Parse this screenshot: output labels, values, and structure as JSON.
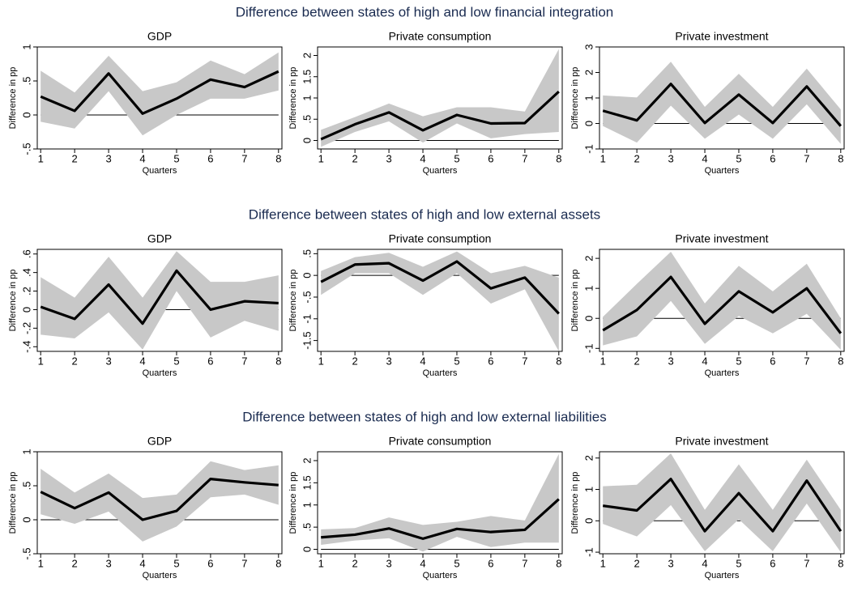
{
  "figure_titles": [
    "Difference between states of high and low financial integration",
    "Difference between states of high and low external assets",
    "Difference between states of high and low external liabilities"
  ],
  "chart_data": [
    {
      "type": "line",
      "title": "GDP",
      "xlabel": "Quarters",
      "ylabel": "Difference in pp",
      "x": [
        1,
        2,
        3,
        4,
        5,
        6,
        7,
        8
      ],
      "xlim": [
        0.9,
        8.1
      ],
      "xticks": [
        1,
        2,
        3,
        4,
        5,
        6,
        7,
        8
      ],
      "ylim": [
        -0.5,
        1
      ],
      "yticks": [
        {
          "value": -0.5,
          "label": "-.5"
        },
        0,
        {
          "value": 0.5,
          "label": ".5"
        },
        1
      ],
      "hline": 0,
      "color": "#000000",
      "band_color": "#c8c8c8",
      "values": [
        0.27,
        0.06,
        0.61,
        0.02,
        0.24,
        0.52,
        0.41,
        0.64
      ],
      "ci_lower": [
        -0.1,
        -0.2,
        0.35,
        -0.3,
        0,
        0.24,
        0.24,
        0.36
      ],
      "ci_upper": [
        0.65,
        0.33,
        0.87,
        0.35,
        0.48,
        0.8,
        0.6,
        0.92
      ]
    },
    {
      "type": "line",
      "title": "Private consumption",
      "xlabel": "Quarters",
      "ylabel": "Difference in pp",
      "x": [
        1,
        2,
        3,
        4,
        5,
        6,
        7,
        8
      ],
      "xlim": [
        0.9,
        8.1
      ],
      "xticks": [
        1,
        2,
        3,
        4,
        5,
        6,
        7,
        8
      ],
      "ylim": [
        -0.2,
        2.2
      ],
      "yticks": [
        0,
        {
          "value": 0.5,
          "label": ".5"
        },
        1,
        1.5,
        2
      ],
      "hline": 0,
      "color": "#000000",
      "band_color": "#c8c8c8",
      "values": [
        0.03,
        0.38,
        0.66,
        0.24,
        0.6,
        0.4,
        0.41,
        1.15
      ],
      "ci_lower": [
        -0.15,
        0.2,
        0.45,
        -0.05,
        0.4,
        0.05,
        0.15,
        0.2
      ],
      "ci_upper": [
        0.25,
        0.55,
        0.87,
        0.57,
        0.78,
        0.78,
        0.68,
        2.15
      ]
    },
    {
      "type": "line",
      "title": "Private investment",
      "xlabel": "Quarters",
      "ylabel": "Difference in pp",
      "x": [
        1,
        2,
        3,
        4,
        5,
        6,
        7,
        8
      ],
      "xlim": [
        0.9,
        8.1
      ],
      "xticks": [
        1,
        2,
        3,
        4,
        5,
        6,
        7,
        8
      ],
      "ylim": [
        -1,
        3
      ],
      "yticks": [
        -1,
        0,
        1,
        2,
        3
      ],
      "hline": 0,
      "color": "#000000",
      "band_color": "#c8c8c8",
      "values": [
        0.5,
        0.12,
        1.55,
        0.02,
        1.13,
        0.02,
        1.45,
        -0.1
      ],
      "ci_lower": [
        -0.1,
        -0.75,
        0.7,
        -0.6,
        0.35,
        -0.6,
        0.75,
        -0.8
      ],
      "ci_upper": [
        1.1,
        1.02,
        2.42,
        0.65,
        1.95,
        0.65,
        2.15,
        0.55
      ]
    },
    {
      "type": "line",
      "title": "GDP",
      "xlabel": "Quarters",
      "ylabel": "Difference in pp",
      "x": [
        1,
        2,
        3,
        4,
        5,
        6,
        7,
        8
      ],
      "xlim": [
        0.9,
        8.1
      ],
      "xticks": [
        1,
        2,
        3,
        4,
        5,
        6,
        7,
        8
      ],
      "ylim": [
        -0.45,
        0.65
      ],
      "yticks": [
        {
          "value": -0.4,
          "label": "-.4"
        },
        {
          "value": -0.2,
          "label": "-.2"
        },
        0,
        {
          "value": 0.2,
          "label": ".2"
        },
        {
          "value": 0.4,
          "label": ".4"
        },
        {
          "value": 0.6,
          "label": ".6"
        }
      ],
      "hline": 0,
      "color": "#000000",
      "band_color": "#c8c8c8",
      "values": [
        0.03,
        -0.1,
        0.27,
        -0.15,
        0.42,
        0,
        0.09,
        0.07
      ],
      "ci_lower": [
        -0.27,
        -0.31,
        -0.03,
        -0.43,
        0.2,
        -0.3,
        -0.12,
        -0.23
      ],
      "ci_upper": [
        0.35,
        0.13,
        0.57,
        0.13,
        0.63,
        0.3,
        0.3,
        0.37
      ]
    },
    {
      "type": "line",
      "title": "Private consumption",
      "xlabel": "Quarters",
      "ylabel": "Difference in pp",
      "x": [
        1,
        2,
        3,
        4,
        5,
        6,
        7,
        8
      ],
      "xlim": [
        0.9,
        8.1
      ],
      "xticks": [
        1,
        2,
        3,
        4,
        5,
        6,
        7,
        8
      ],
      "ylim": [
        -1.75,
        0.6
      ],
      "yticks": [
        -1.5,
        -1,
        {
          "value": -0.5,
          "label": "-.5"
        },
        0,
        {
          "value": 0.5,
          "label": ".5"
        }
      ],
      "hline": 0,
      "color": "#000000",
      "band_color": "#c8c8c8",
      "values": [
        -0.15,
        0.25,
        0.28,
        -0.12,
        0.32,
        -0.3,
        -0.05,
        -0.88
      ],
      "ci_lower": [
        -0.45,
        0.05,
        0.05,
        -0.45,
        0.05,
        -0.65,
        -0.32,
        -1.75
      ],
      "ci_upper": [
        0.1,
        0.42,
        0.52,
        0.2,
        0.55,
        0.05,
        0.22,
        -0.05
      ]
    },
    {
      "type": "line",
      "title": "Private investment",
      "xlabel": "Quarters",
      "ylabel": "Difference in pp",
      "x": [
        1,
        2,
        3,
        4,
        5,
        6,
        7,
        8
      ],
      "xlim": [
        0.9,
        8.1
      ],
      "xticks": [
        1,
        2,
        3,
        4,
        5,
        6,
        7,
        8
      ],
      "ylim": [
        -1.1,
        2.3
      ],
      "yticks": [
        -1,
        0,
        1,
        2
      ],
      "hline": 0,
      "color": "#000000",
      "band_color": "#c8c8c8",
      "values": [
        -0.4,
        0.28,
        1.38,
        -0.18,
        0.9,
        0.2,
        1,
        -0.5
      ],
      "ci_lower": [
        -0.9,
        -0.6,
        0.58,
        -0.85,
        0.08,
        -0.5,
        0.15,
        -1.05
      ],
      "ci_upper": [
        0.05,
        1.15,
        2.22,
        0.5,
        1.75,
        0.9,
        1.82,
        0
      ]
    },
    {
      "type": "line",
      "title": "GDP",
      "xlabel": "Quarters",
      "ylabel": "Difference in pp",
      "x": [
        1,
        2,
        3,
        4,
        5,
        6,
        7,
        8
      ],
      "xlim": [
        0.9,
        8.1
      ],
      "xticks": [
        1,
        2,
        3,
        4,
        5,
        6,
        7,
        8
      ],
      "ylim": [
        -0.5,
        1
      ],
      "yticks": [
        {
          "value": -0.5,
          "label": "-.5"
        },
        0,
        {
          "value": 0.5,
          "label": ".5"
        },
        1
      ],
      "hline": 0,
      "color": "#000000",
      "band_color": "#c8c8c8",
      "values": [
        0.41,
        0.17,
        0.4,
        0,
        0.13,
        0.6,
        0.55,
        0.51
      ],
      "ci_lower": [
        0.08,
        -0.06,
        0.12,
        -0.32,
        -0.1,
        0.33,
        0.37,
        0.22
      ],
      "ci_upper": [
        0.75,
        0.4,
        0.68,
        0.32,
        0.37,
        0.86,
        0.73,
        0.8
      ]
    },
    {
      "type": "line",
      "title": "Private consumption",
      "xlabel": "Quarters",
      "ylabel": "Difference in pp",
      "x": [
        1,
        2,
        3,
        4,
        5,
        6,
        7,
        8
      ],
      "xlim": [
        0.9,
        8.1
      ],
      "xticks": [
        1,
        2,
        3,
        4,
        5,
        6,
        7,
        8
      ],
      "ylim": [
        -0.1,
        2.2
      ],
      "yticks": [
        0,
        {
          "value": 0.5,
          "label": ".5"
        },
        1,
        1.5,
        2
      ],
      "hline": 0,
      "color": "#000000",
      "band_color": "#c8c8c8",
      "values": [
        0.27,
        0.33,
        0.47,
        0.24,
        0.46,
        0.39,
        0.44,
        1.13
      ],
      "ci_lower": [
        0.1,
        0.2,
        0.25,
        -0.05,
        0.28,
        0.05,
        0.15,
        0.15
      ],
      "ci_upper": [
        0.45,
        0.48,
        0.72,
        0.55,
        0.62,
        0.75,
        0.65,
        2.15
      ]
    },
    {
      "type": "line",
      "title": "Private investment",
      "xlabel": "Quarters",
      "ylabel": "Difference in pp",
      "x": [
        1,
        2,
        3,
        4,
        5,
        6,
        7,
        8
      ],
      "xlim": [
        0.9,
        8.1
      ],
      "xticks": [
        1,
        2,
        3,
        4,
        5,
        6,
        7,
        8
      ],
      "ylim": [
        -1.05,
        2.2
      ],
      "yticks": [
        -1,
        0,
        1,
        2
      ],
      "hline": 0,
      "color": "#000000",
      "band_color": "#c8c8c8",
      "values": [
        0.48,
        0.33,
        1.33,
        -0.33,
        0.88,
        -0.33,
        1.28,
        -0.33
      ],
      "ci_lower": [
        -0.1,
        -0.5,
        0.5,
        -0.97,
        0.05,
        -0.97,
        0.55,
        -1
      ],
      "ci_upper": [
        1.1,
        1.15,
        2.15,
        0.35,
        1.8,
        0.35,
        1.95,
        0.35
      ]
    }
  ]
}
